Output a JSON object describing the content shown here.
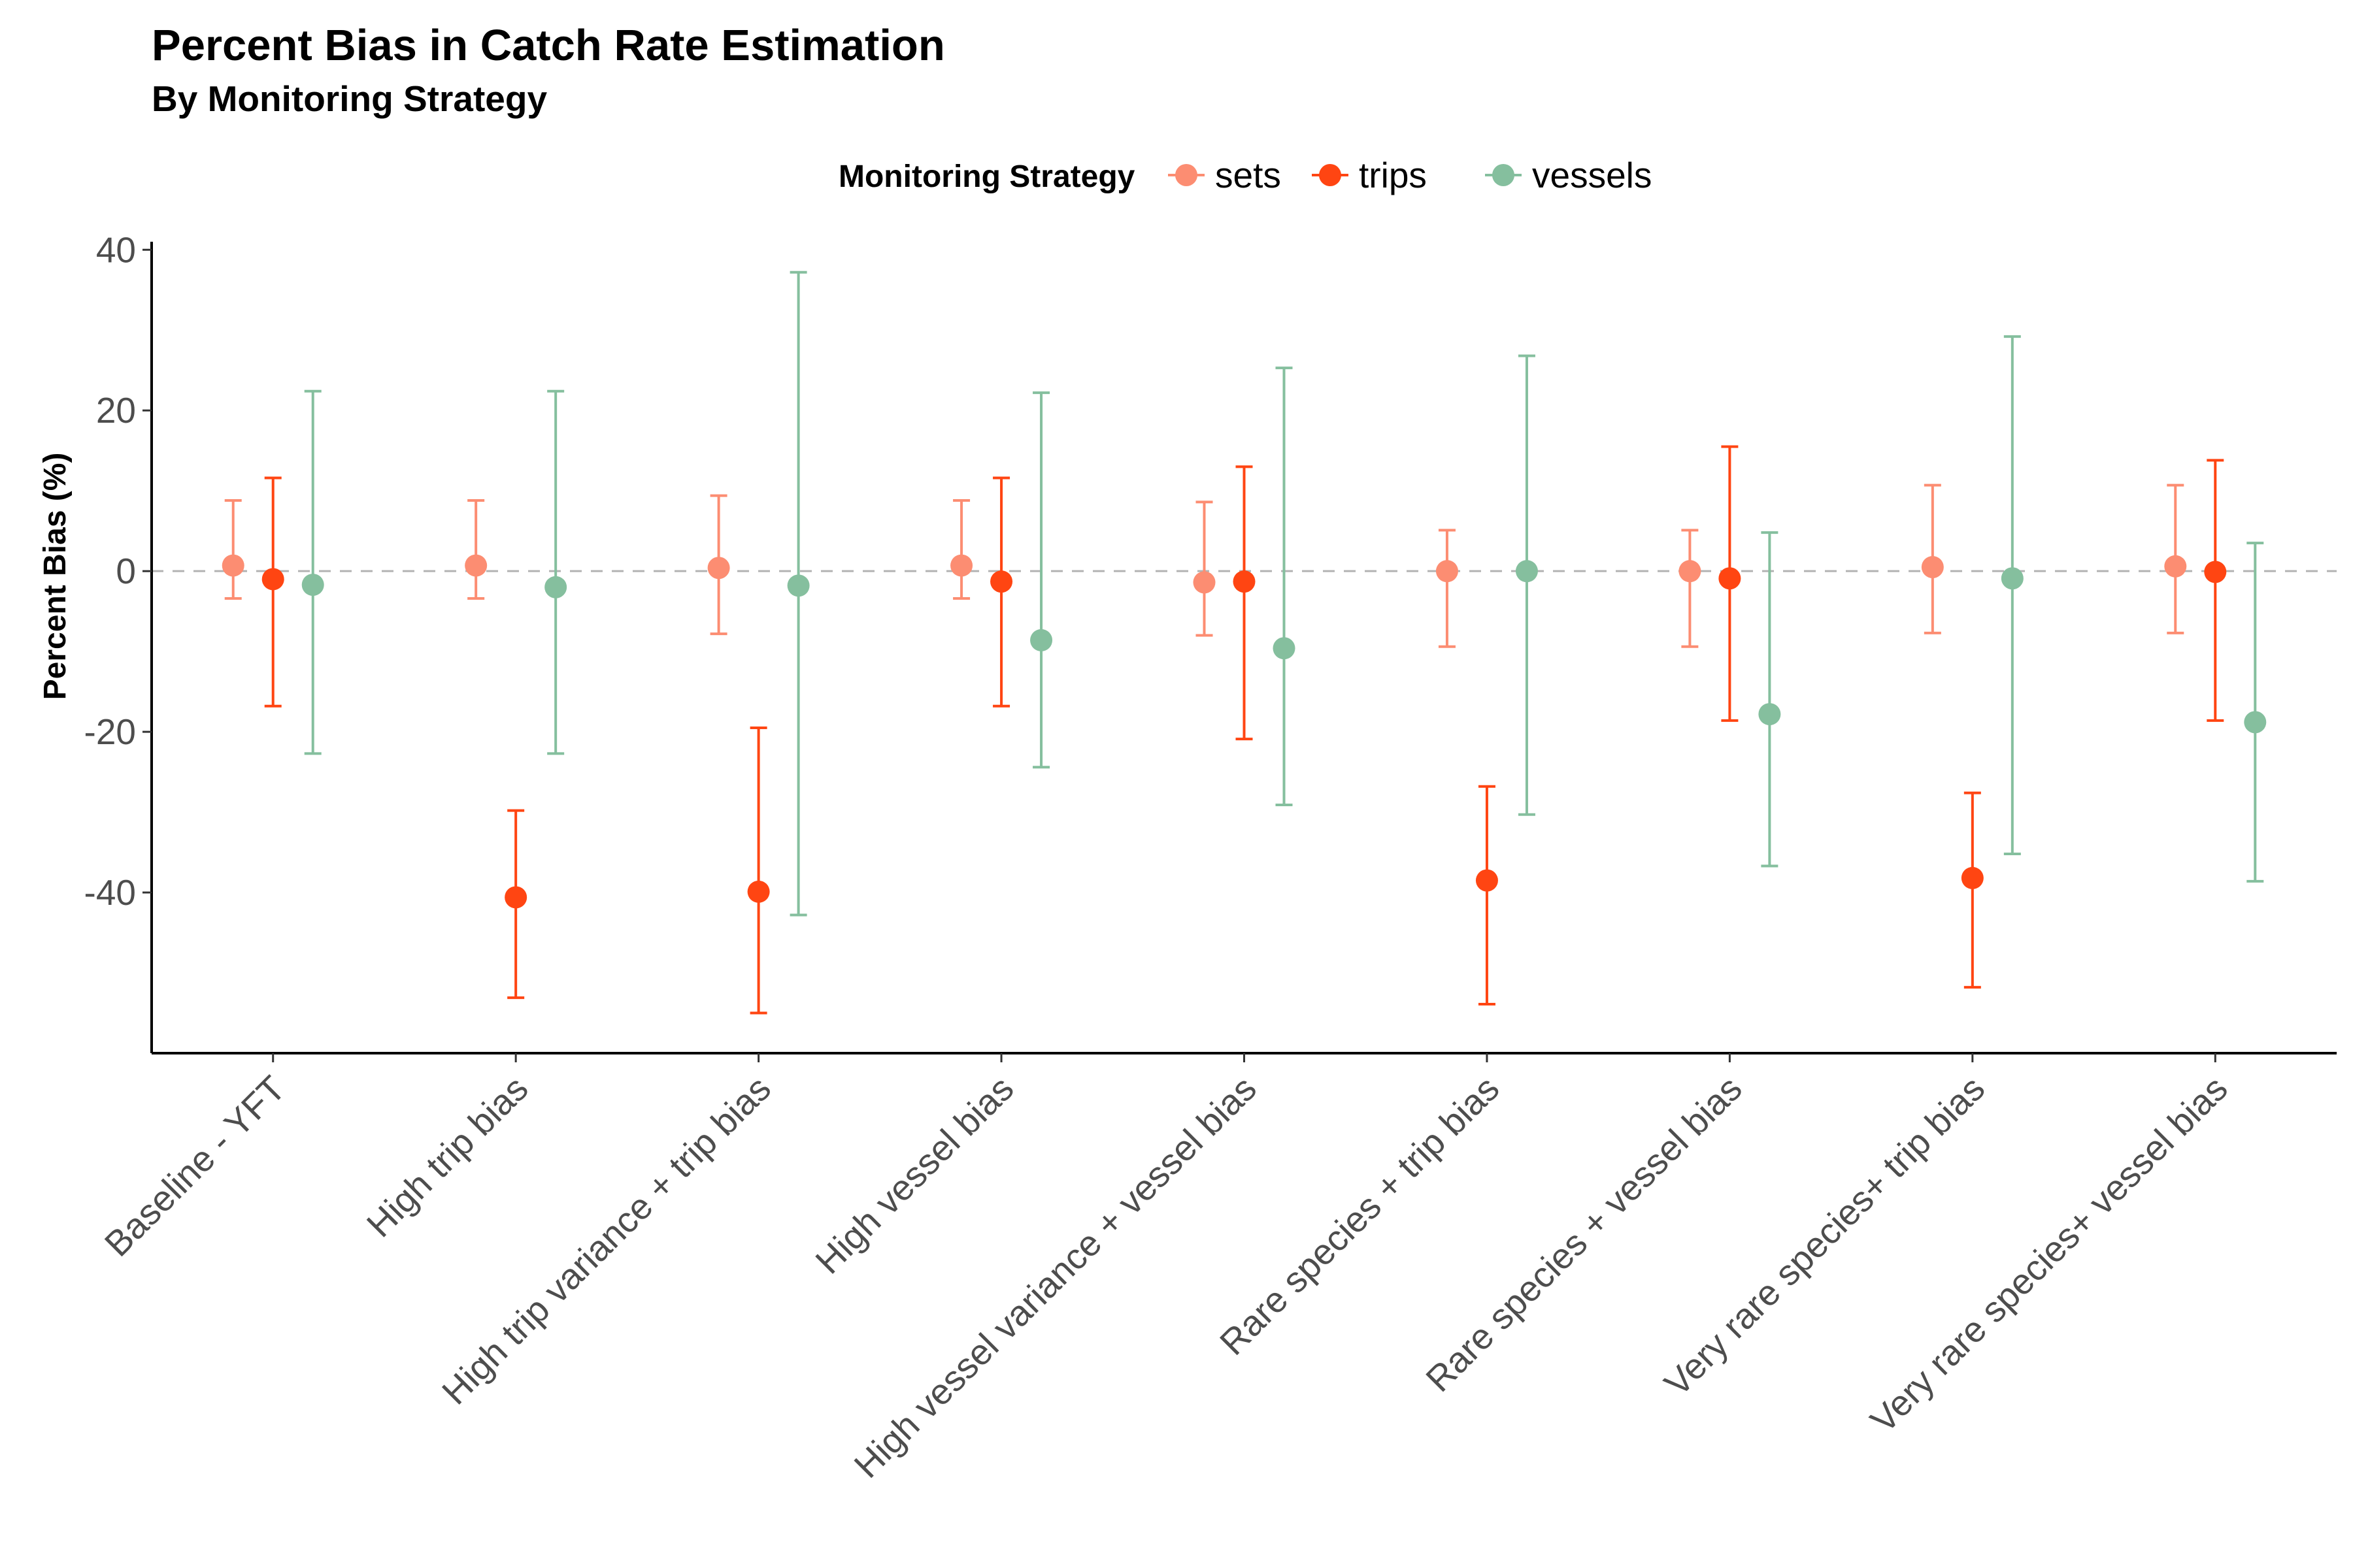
{
  "chart_data": {
    "type": "scatter",
    "title": "Percent Bias in Catch Rate Estimation",
    "subtitle": "By Monitoring Strategy",
    "xlabel": "",
    "ylabel": "Percent Bias (%)",
    "ylim": [
      -60,
      41
    ],
    "y_ticks": [
      40,
      20,
      0,
      -20,
      -40
    ],
    "y_tick_labels": [
      "40",
      "20",
      "0",
      "-20",
      "-40"
    ],
    "reference_line": 0,
    "grid": false,
    "legend": {
      "title": "Monitoring Strategy",
      "position": "top"
    },
    "categories": [
      "Baseline - YFT",
      "High trip bias",
      "High trip variance + trip bias",
      "High vessel bias",
      "High vessel variance + vessel bias",
      "Rare species + trip bias",
      "Rare species + vessel bias",
      "Very rare species+ trip bias",
      "Very rare species+ vessel bias"
    ],
    "series": [
      {
        "name": "sets",
        "color": "#FC8D72",
        "values": [
          0.7,
          0.7,
          0.4,
          0.7,
          -1.4,
          0.0,
          0.0,
          0.5,
          0.6
        ],
        "lower": [
          -3.4,
          -3.4,
          -7.8,
          -3.4,
          -8.0,
          -9.4,
          -9.4,
          -7.7,
          -7.7
        ],
        "upper": [
          8.8,
          8.8,
          9.4,
          8.8,
          8.6,
          5.1,
          5.1,
          10.7,
          10.7
        ]
      },
      {
        "name": "trips",
        "color": "#FF4512",
        "values": [
          -1.0,
          -40.6,
          -39.9,
          -1.3,
          -1.3,
          -38.5,
          -0.9,
          -38.2,
          -0.1
        ],
        "lower": [
          -16.8,
          -53.1,
          -55.0,
          -16.8,
          -20.9,
          -53.9,
          -18.6,
          -51.8,
          -18.6
        ],
        "upper": [
          11.6,
          -29.8,
          -19.5,
          11.6,
          13.0,
          -26.8,
          15.5,
          -27.6,
          13.8
        ]
      },
      {
        "name": "vessels",
        "color": "#85BF9E",
        "values": [
          -1.7,
          -2.0,
          -1.8,
          -8.6,
          -9.6,
          0.0,
          -17.8,
          -0.9,
          -18.8
        ],
        "lower": [
          -22.7,
          -22.7,
          -42.8,
          -24.4,
          -29.1,
          -30.3,
          -36.7,
          -35.2,
          -38.6
        ],
        "upper": [
          22.4,
          22.4,
          37.2,
          22.2,
          25.3,
          26.8,
          4.8,
          29.2,
          3.5
        ]
      }
    ]
  }
}
